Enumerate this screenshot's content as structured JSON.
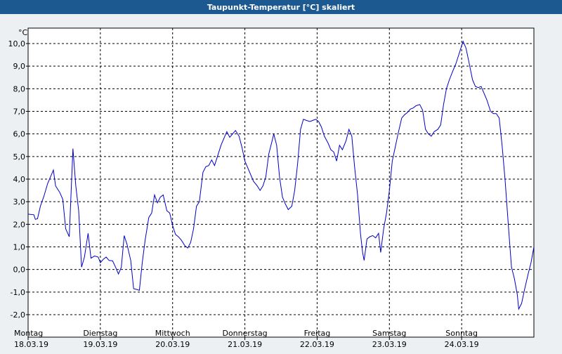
{
  "window_title": "Taupunkt-Temperatur [°C] skaliert",
  "colors": {
    "title_bar": "#1b5990",
    "title_text": "#ffffff",
    "background": "#ecf0f3",
    "plot_background": "#ffffff",
    "line": "#0000c8",
    "grid": "#000000"
  },
  "chart_data": {
    "type": "line",
    "title": "Taupunkt-Temperatur [°C] skaliert",
    "ylabel": "°C",
    "ylim": [
      -2.3,
      10.7
    ],
    "y_ticks": [
      "10,0",
      "9,0",
      "8,0",
      "7,0",
      "6,0",
      "5,0",
      "4,0",
      "3,0",
      "2,0",
      "1,0",
      "0,0",
      "-1,0",
      "-2,0"
    ],
    "y_tick_values": [
      10,
      9,
      8,
      7,
      6,
      5,
      4,
      3,
      2,
      1,
      0,
      -1,
      -2
    ],
    "x_range_days": [
      0,
      7
    ],
    "x_ticks": [
      {
        "day": "Montag",
        "date": "18.03.19",
        "x": 0
      },
      {
        "day": "Dienstag",
        "date": "19.03.19",
        "x": 1
      },
      {
        "day": "Mittwoch",
        "date": "20.03.19",
        "x": 2
      },
      {
        "day": "Donnerstag",
        "date": "21.03.19",
        "x": 3
      },
      {
        "day": "Freitag",
        "date": "22.03.19",
        "x": 4
      },
      {
        "day": "Samstag",
        "date": "23.03.19",
        "x": 5
      },
      {
        "day": "Sonntag",
        "date": "24.03.19",
        "x": 6
      }
    ],
    "grid": true,
    "series": [
      {
        "points": [
          [
            0.0,
            2.45
          ],
          [
            0.08,
            2.42
          ],
          [
            0.1,
            2.22
          ],
          [
            0.13,
            2.25
          ],
          [
            0.17,
            2.8
          ],
          [
            0.22,
            3.25
          ],
          [
            0.27,
            3.8
          ],
          [
            0.35,
            4.4
          ],
          [
            0.38,
            3.7
          ],
          [
            0.44,
            3.4
          ],
          [
            0.48,
            3.1
          ],
          [
            0.52,
            1.8
          ],
          [
            0.57,
            1.45
          ],
          [
            0.62,
            5.35
          ],
          [
            0.66,
            3.7
          ],
          [
            0.7,
            2.6
          ],
          [
            0.74,
            0.1
          ],
          [
            0.78,
            0.55
          ],
          [
            0.83,
            1.6
          ],
          [
            0.87,
            0.5
          ],
          [
            0.92,
            0.6
          ],
          [
            0.97,
            0.55
          ],
          [
            1.0,
            0.3
          ],
          [
            1.04,
            0.45
          ],
          [
            1.08,
            0.55
          ],
          [
            1.12,
            0.4
          ],
          [
            1.17,
            0.38
          ],
          [
            1.21,
            0.1
          ],
          [
            1.25,
            -0.2
          ],
          [
            1.29,
            0.1
          ],
          [
            1.33,
            1.5
          ],
          [
            1.37,
            1.1
          ],
          [
            1.42,
            0.4
          ],
          [
            1.46,
            -0.85
          ],
          [
            1.5,
            -0.88
          ],
          [
            1.54,
            -0.92
          ],
          [
            1.58,
            0.3
          ],
          [
            1.62,
            1.3
          ],
          [
            1.67,
            2.3
          ],
          [
            1.71,
            2.5
          ],
          [
            1.75,
            3.3
          ],
          [
            1.79,
            2.95
          ],
          [
            1.83,
            3.2
          ],
          [
            1.87,
            3.3
          ],
          [
            1.92,
            2.6
          ],
          [
            1.96,
            2.5
          ],
          [
            2.0,
            1.95
          ],
          [
            2.04,
            1.55
          ],
          [
            2.08,
            1.45
          ],
          [
            2.12,
            1.3
          ],
          [
            2.17,
            1.05
          ],
          [
            2.21,
            0.95
          ],
          [
            2.25,
            1.2
          ],
          [
            2.29,
            1.8
          ],
          [
            2.33,
            2.8
          ],
          [
            2.37,
            3.0
          ],
          [
            2.42,
            4.3
          ],
          [
            2.46,
            4.55
          ],
          [
            2.5,
            4.6
          ],
          [
            2.54,
            4.85
          ],
          [
            2.58,
            4.6
          ],
          [
            2.62,
            5.0
          ],
          [
            2.67,
            5.5
          ],
          [
            2.71,
            5.8
          ],
          [
            2.75,
            6.1
          ],
          [
            2.79,
            5.85
          ],
          [
            2.83,
            6.0
          ],
          [
            2.87,
            6.15
          ],
          [
            2.92,
            5.9
          ],
          [
            2.96,
            5.4
          ],
          [
            3.0,
            4.8
          ],
          [
            3.04,
            4.5
          ],
          [
            3.08,
            4.2
          ],
          [
            3.12,
            3.9
          ],
          [
            3.17,
            3.7
          ],
          [
            3.21,
            3.5
          ],
          [
            3.25,
            3.7
          ],
          [
            3.29,
            4.1
          ],
          [
            3.33,
            5.1
          ],
          [
            3.37,
            5.6
          ],
          [
            3.4,
            6.0
          ],
          [
            3.44,
            5.5
          ],
          [
            3.48,
            4.1
          ],
          [
            3.52,
            3.2
          ],
          [
            3.56,
            2.9
          ],
          [
            3.6,
            2.65
          ],
          [
            3.65,
            2.8
          ],
          [
            3.69,
            3.5
          ],
          [
            3.73,
            4.7
          ],
          [
            3.77,
            6.2
          ],
          [
            3.81,
            6.65
          ],
          [
            3.85,
            6.6
          ],
          [
            3.9,
            6.55
          ],
          [
            3.94,
            6.6
          ],
          [
            3.98,
            6.65
          ],
          [
            4.02,
            6.55
          ],
          [
            4.06,
            6.3
          ],
          [
            4.1,
            5.9
          ],
          [
            4.15,
            5.6
          ],
          [
            4.19,
            5.3
          ],
          [
            4.23,
            5.2
          ],
          [
            4.27,
            4.8
          ],
          [
            4.31,
            5.5
          ],
          [
            4.35,
            5.3
          ],
          [
            4.4,
            5.7
          ],
          [
            4.44,
            6.2
          ],
          [
            4.48,
            5.9
          ],
          [
            4.52,
            4.5
          ],
          [
            4.56,
            3.3
          ],
          [
            4.6,
            1.6
          ],
          [
            4.63,
            0.75
          ],
          [
            4.65,
            0.4
          ],
          [
            4.69,
            1.35
          ],
          [
            4.73,
            1.45
          ],
          [
            4.77,
            1.5
          ],
          [
            4.81,
            1.4
          ],
          [
            4.85,
            1.6
          ],
          [
            4.88,
            0.75
          ],
          [
            4.92,
            1.8
          ],
          [
            4.96,
            2.5
          ],
          [
            5.0,
            3.5
          ],
          [
            5.04,
            4.8
          ],
          [
            5.08,
            5.4
          ],
          [
            5.12,
            6.0
          ],
          [
            5.17,
            6.7
          ],
          [
            5.21,
            6.85
          ],
          [
            5.25,
            6.95
          ],
          [
            5.29,
            7.1
          ],
          [
            5.33,
            7.15
          ],
          [
            5.37,
            7.25
          ],
          [
            5.42,
            7.3
          ],
          [
            5.46,
            7.05
          ],
          [
            5.5,
            6.2
          ],
          [
            5.54,
            6.0
          ],
          [
            5.58,
            5.9
          ],
          [
            5.62,
            6.1
          ],
          [
            5.67,
            6.2
          ],
          [
            5.71,
            6.4
          ],
          [
            5.75,
            7.3
          ],
          [
            5.79,
            8.0
          ],
          [
            5.83,
            8.4
          ],
          [
            5.88,
            8.8
          ],
          [
            5.92,
            9.1
          ],
          [
            5.96,
            9.5
          ],
          [
            6.0,
            9.9
          ],
          [
            6.02,
            10.1
          ],
          [
            6.06,
            9.8
          ],
          [
            6.1,
            9.2
          ],
          [
            6.15,
            8.4
          ],
          [
            6.19,
            8.1
          ],
          [
            6.23,
            8.05
          ],
          [
            6.27,
            8.1
          ],
          [
            6.31,
            7.8
          ],
          [
            6.35,
            7.5
          ],
          [
            6.4,
            7.0
          ],
          [
            6.44,
            6.9
          ],
          [
            6.48,
            6.9
          ],
          [
            6.52,
            6.7
          ],
          [
            6.56,
            5.5
          ],
          [
            6.6,
            4.0
          ],
          [
            6.65,
            1.8
          ],
          [
            6.69,
            0.1
          ],
          [
            6.73,
            -0.4
          ],
          [
            6.77,
            -1.1
          ],
          [
            6.79,
            -1.75
          ],
          [
            6.83,
            -1.5
          ],
          [
            6.87,
            -0.9
          ],
          [
            6.92,
            -0.2
          ],
          [
            6.96,
            0.3
          ],
          [
            7.0,
            1.0
          ]
        ]
      }
    ]
  }
}
